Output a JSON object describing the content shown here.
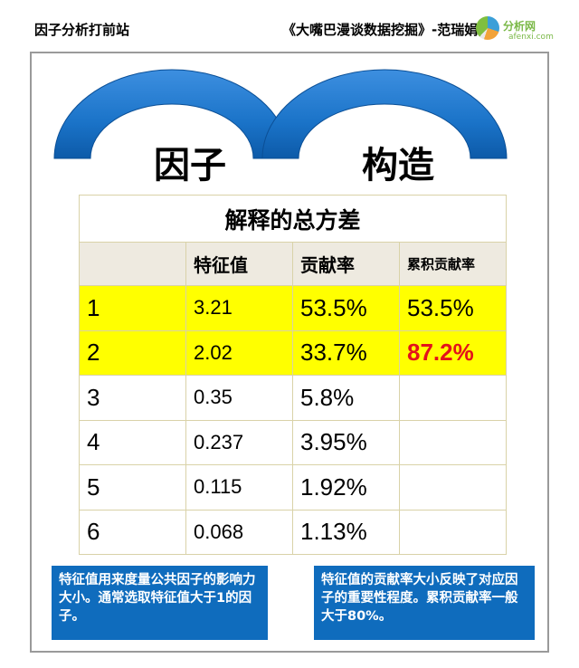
{
  "header": {
    "left": "因子分析打前站",
    "right": "《大嘴巴漫谈数据挖掘》-范瑞娟"
  },
  "logo": {
    "text": "分析网",
    "sub": "afenxi.com"
  },
  "arch": {
    "word1": "因子",
    "word2": "构造"
  },
  "table": {
    "title": "解释的总方差",
    "headers": [
      "",
      "特征值",
      "贡献率",
      "累积贡献率"
    ],
    "rows": [
      {
        "index": "1",
        "eigenvalue": "3.21",
        "contribution": "53.5%",
        "cumulative": "53.5%"
      },
      {
        "index": "2",
        "eigenvalue": "2.02",
        "contribution": "33.7%",
        "cumulative": "87.2%"
      },
      {
        "index": "3",
        "eigenvalue": "0.35",
        "contribution": "5.8%",
        "cumulative": ""
      },
      {
        "index": "4",
        "eigenvalue": "0.237",
        "contribution": "3.95%",
        "cumulative": ""
      },
      {
        "index": "5",
        "eigenvalue": "0.115",
        "contribution": "1.92%",
        "cumulative": ""
      },
      {
        "index": "6",
        "eigenvalue": "0.068",
        "contribution": "1.13%",
        "cumulative": ""
      }
    ]
  },
  "notes": {
    "left": "特征值用来度量公共因子的影响力大小。通常选取特征值大于1的因子。",
    "right": "特征值的贡献率大小反映了对应因子的重要性程度。累积贡献率一般大于80%。"
  },
  "colors": {
    "arch_blue": "#1a73c8",
    "highlight": "#ffff00",
    "emphasis_red": "#e3121b",
    "note_bg": "#0f6cbd"
  }
}
